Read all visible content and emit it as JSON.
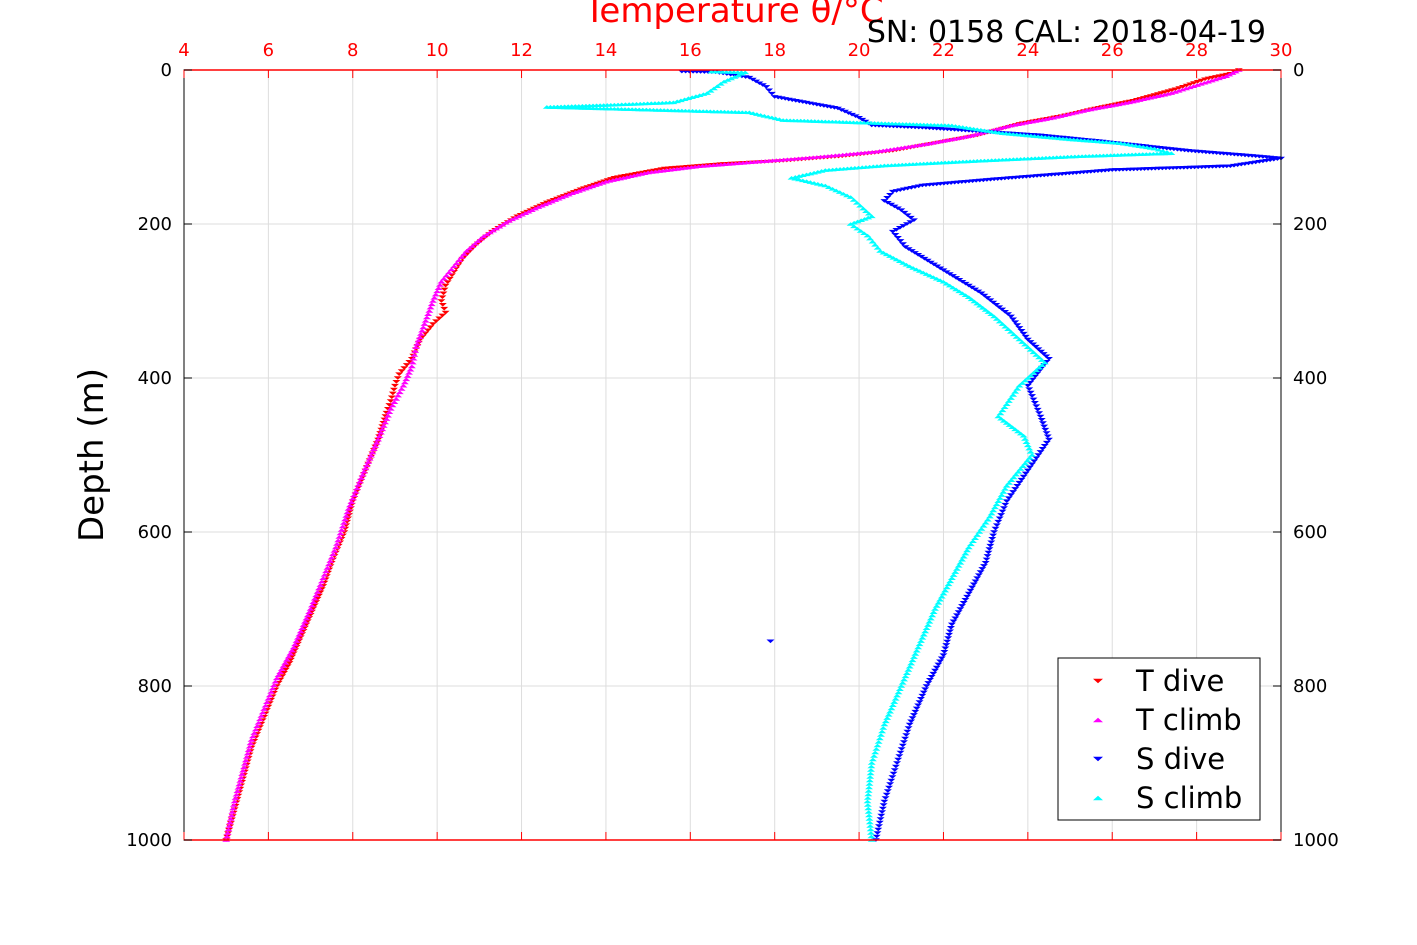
{
  "chart_data": {
    "type": "scatter",
    "title": "Temperature θ/°C",
    "subtitle": "SN: 0158  CAL: 2018-04-19",
    "xlabel": "",
    "ylabel": "Depth (m)",
    "xlim": [
      4,
      30
    ],
    "ylim": [
      1000,
      0
    ],
    "x_ticks": [
      4,
      6,
      8,
      10,
      12,
      14,
      16,
      18,
      20,
      22,
      24,
      26,
      28,
      30
    ],
    "y_ticks": [
      0,
      200,
      400,
      600,
      800,
      1000
    ],
    "grid": true,
    "legend_position": "bottom-right",
    "colors": {
      "t_dive": "#ff0000",
      "t_climb": "#ff00ff",
      "s_dive": "#0000ff",
      "s_climb": "#00ffff",
      "axis_top": "#ff0000",
      "grid": "#dddddd"
    },
    "series": [
      {
        "name": "T dive",
        "marker": "triangle-down",
        "color": "#ff0000",
        "points": [
          [
            29.0,
            0
          ],
          [
            28.8,
            5
          ],
          [
            28.2,
            12
          ],
          [
            27.5,
            25
          ],
          [
            26.5,
            40
          ],
          [
            25.6,
            50
          ],
          [
            24.8,
            60
          ],
          [
            23.8,
            70
          ],
          [
            22.8,
            85
          ],
          [
            21.8,
            95
          ],
          [
            20.8,
            105
          ],
          [
            19.6,
            112
          ],
          [
            18.2,
            118
          ],
          [
            16.8,
            122
          ],
          [
            15.4,
            128
          ],
          [
            14.2,
            140
          ],
          [
            13.4,
            155
          ],
          [
            12.6,
            172
          ],
          [
            11.9,
            190
          ],
          [
            11.3,
            210
          ],
          [
            10.9,
            228
          ],
          [
            10.6,
            245
          ],
          [
            10.4,
            262
          ],
          [
            10.2,
            280
          ],
          [
            10.1,
            300
          ],
          [
            10.2,
            315
          ],
          [
            9.9,
            330
          ],
          [
            9.6,
            350
          ],
          [
            9.4,
            375
          ],
          [
            9.1,
            395
          ],
          [
            9.0,
            410
          ],
          [
            8.9,
            430
          ],
          [
            8.8,
            445
          ],
          [
            8.6,
            480
          ],
          [
            8.3,
            520
          ],
          [
            8.0,
            560
          ],
          [
            7.8,
            600
          ],
          [
            7.5,
            640
          ],
          [
            7.3,
            670
          ],
          [
            6.9,
            720
          ],
          [
            6.5,
            770
          ],
          [
            6.2,
            800
          ],
          [
            5.9,
            840
          ],
          [
            5.6,
            880
          ],
          [
            5.4,
            920
          ],
          [
            5.2,
            960
          ],
          [
            5.0,
            1000
          ]
        ]
      },
      {
        "name": "T climb",
        "marker": "triangle-up",
        "color": "#ff00ff",
        "points": [
          [
            29.0,
            0
          ],
          [
            28.7,
            8
          ],
          [
            28.1,
            18
          ],
          [
            27.4,
            30
          ],
          [
            26.4,
            42
          ],
          [
            25.4,
            52
          ],
          [
            24.6,
            62
          ],
          [
            23.6,
            72
          ],
          [
            22.6,
            86
          ],
          [
            21.6,
            96
          ],
          [
            20.4,
            106
          ],
          [
            19.0,
            113
          ],
          [
            17.6,
            119
          ],
          [
            16.2,
            125
          ],
          [
            15.0,
            133
          ],
          [
            14.0,
            145
          ],
          [
            13.2,
            160
          ],
          [
            12.4,
            178
          ],
          [
            11.7,
            196
          ],
          [
            11.1,
            216
          ],
          [
            10.7,
            235
          ],
          [
            10.4,
            255
          ],
          [
            10.1,
            275
          ],
          [
            9.9,
            300
          ],
          [
            9.7,
            330
          ],
          [
            9.5,
            360
          ],
          [
            9.4,
            385
          ],
          [
            9.2,
            410
          ],
          [
            8.9,
            440
          ],
          [
            8.6,
            480
          ],
          [
            8.2,
            530
          ],
          [
            7.9,
            570
          ],
          [
            7.6,
            620
          ],
          [
            7.3,
            660
          ],
          [
            7.0,
            700
          ],
          [
            6.6,
            750
          ],
          [
            6.2,
            790
          ],
          [
            5.9,
            830
          ],
          [
            5.6,
            870
          ],
          [
            5.4,
            910
          ],
          [
            5.2,
            950
          ],
          [
            5.0,
            1000
          ]
        ]
      },
      {
        "name": "S dive",
        "marker": "triangle-down",
        "color": "#0000ff",
        "points": [
          [
            15.8,
            2
          ],
          [
            16.6,
            3
          ],
          [
            17.4,
            10
          ],
          [
            17.8,
            22
          ],
          [
            18.0,
            35
          ],
          [
            19.5,
            50
          ],
          [
            20.0,
            62
          ],
          [
            20.3,
            72
          ],
          [
            21.5,
            75
          ],
          [
            24.3,
            85
          ],
          [
            25.6,
            92
          ],
          [
            27.8,
            105
          ],
          [
            29.4,
            112
          ],
          [
            30.0,
            115
          ],
          [
            28.8,
            125
          ],
          [
            26.0,
            130
          ],
          [
            23.2,
            142
          ],
          [
            21.5,
            150
          ],
          [
            20.8,
            158
          ],
          [
            20.6,
            170
          ],
          [
            21.0,
            182
          ],
          [
            21.3,
            195
          ],
          [
            20.8,
            210
          ],
          [
            21.1,
            230
          ],
          [
            21.7,
            250
          ],
          [
            22.3,
            270
          ],
          [
            22.9,
            290
          ],
          [
            23.6,
            320
          ],
          [
            24.0,
            350
          ],
          [
            24.5,
            375
          ],
          [
            24.0,
            410
          ],
          [
            24.3,
            450
          ],
          [
            24.5,
            480
          ],
          [
            24.0,
            520
          ],
          [
            23.5,
            560
          ],
          [
            23.2,
            600
          ],
          [
            23.0,
            640
          ],
          [
            22.6,
            680
          ],
          [
            22.2,
            720
          ],
          [
            22.0,
            760
          ],
          [
            21.6,
            800
          ],
          [
            21.2,
            850
          ],
          [
            20.9,
            900
          ],
          [
            20.6,
            950
          ],
          [
            20.4,
            1000
          ],
          [
            17.9,
            742
          ]
        ]
      },
      {
        "name": "S climb",
        "marker": "triangle-up",
        "color": "#00ffff",
        "points": [
          [
            16.5,
            2
          ],
          [
            17.3,
            3
          ],
          [
            16.8,
            15
          ],
          [
            16.4,
            30
          ],
          [
            15.6,
            42
          ],
          [
            14.2,
            45
          ],
          [
            12.6,
            48
          ],
          [
            17.4,
            55
          ],
          [
            18.2,
            65
          ],
          [
            22.2,
            72
          ],
          [
            23.4,
            82
          ],
          [
            25.0,
            90
          ],
          [
            26.2,
            95
          ],
          [
            27.0,
            102
          ],
          [
            27.4,
            108
          ],
          [
            25.2,
            112
          ],
          [
            22.8,
            118
          ],
          [
            20.6,
            124
          ],
          [
            19.2,
            130
          ],
          [
            18.4,
            140
          ],
          [
            19.2,
            150
          ],
          [
            19.8,
            165
          ],
          [
            20.1,
            180
          ],
          [
            20.3,
            190
          ],
          [
            19.8,
            200
          ],
          [
            20.2,
            215
          ],
          [
            20.5,
            235
          ],
          [
            21.2,
            255
          ],
          [
            22.0,
            275
          ],
          [
            22.6,
            295
          ],
          [
            23.2,
            320
          ],
          [
            23.8,
            350
          ],
          [
            24.4,
            380
          ],
          [
            23.8,
            410
          ],
          [
            23.3,
            450
          ],
          [
            23.9,
            475
          ],
          [
            24.1,
            500
          ],
          [
            23.5,
            540
          ],
          [
            23.1,
            580
          ],
          [
            22.6,
            620
          ],
          [
            22.2,
            660
          ],
          [
            21.8,
            700
          ],
          [
            21.4,
            750
          ],
          [
            21.0,
            800
          ],
          [
            20.6,
            850
          ],
          [
            20.3,
            900
          ],
          [
            20.2,
            950
          ],
          [
            20.3,
            1000
          ]
        ]
      }
    ]
  }
}
